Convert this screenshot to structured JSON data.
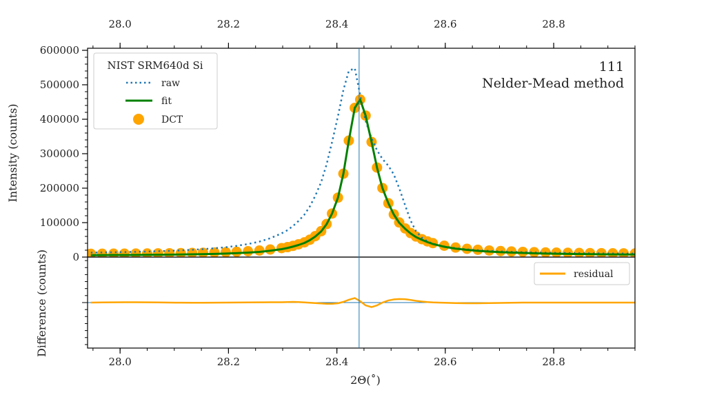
{
  "chart_data": {
    "type": "line",
    "title": "",
    "xlabel": "2Θ(˚)",
    "ylabel_top": "Intensity (counts)",
    "ylabel_bottom": "Difference (counts)",
    "xlim": [
      27.94,
      28.95
    ],
    "ylim_top": [
      0,
      606000
    ],
    "ylim_bottom": [
      -130000,
      130000
    ],
    "x_ticks": [
      "28.0",
      "28.2",
      "28.4",
      "28.6",
      "28.8"
    ],
    "x_tick_values": [
      28.0,
      28.2,
      28.4,
      28.6,
      28.8
    ],
    "y_ticks": [
      "0",
      "100000",
      "200000",
      "300000",
      "400000",
      "500000",
      "600000"
    ],
    "y_tick_values": [
      0,
      100000,
      200000,
      300000,
      400000,
      500000,
      600000
    ],
    "peak_line_x": 28.441,
    "annotations": [
      "111",
      "Nelder-Mead method"
    ],
    "legend_top": {
      "title": "NIST SRM640d Si",
      "entries": [
        "raw",
        "fit",
        "DCT"
      ],
      "placement": "upper-left"
    },
    "legend_bottom": {
      "entries": [
        "residual"
      ],
      "placement": "upper-right"
    },
    "colors": {
      "raw": "#1f77b4",
      "fit": "#008000",
      "dct": "#ffa500",
      "residual": "#ffa500",
      "peak_line": "#1f77b4"
    },
    "x": [
      27.946,
      27.967,
      27.988,
      28.008,
      28.029,
      28.05,
      28.07,
      28.091,
      28.112,
      28.133,
      28.153,
      28.174,
      28.195,
      28.215,
      28.236,
      28.257,
      28.277,
      28.298,
      28.309,
      28.319,
      28.329,
      28.34,
      28.35,
      28.36,
      28.371,
      28.381,
      28.391,
      28.402,
      28.412,
      28.422,
      28.433,
      28.443,
      28.453,
      28.464,
      28.474,
      28.484,
      28.495,
      28.505,
      28.515,
      28.526,
      28.536,
      28.546,
      28.557,
      28.567,
      28.577,
      28.598,
      28.619,
      28.64,
      28.66,
      28.681,
      28.702,
      28.722,
      28.743,
      28.764,
      28.785,
      28.805,
      28.826,
      28.847,
      28.867,
      28.888,
      28.909,
      28.929,
      28.95
    ],
    "series": [
      {
        "name": "raw",
        "values": [
          13000,
          13500,
          14000,
          14600,
          15300,
          16100,
          17000,
          18100,
          19500,
          21100,
          23000,
          25500,
          28600,
          32600,
          37800,
          44800,
          54600,
          68800,
          78200,
          90000,
          104500,
          123000,
          146700,
          177300,
          217600,
          268800,
          333200,
          408700,
          484800,
          540200,
          548000,
          470000,
          395000,
          345000,
          310000,
          285000,
          265000,
          240000,
          200000,
          150000,
          106000,
          75000,
          56000,
          46000,
          39000,
          31000,
          26000,
          22500,
          20000,
          18000,
          16500,
          15300,
          14300,
          13500,
          12800,
          12300,
          11800,
          11400,
          11100,
          10800,
          10600,
          10400,
          10200
        ]
      },
      {
        "name": "fit",
        "values": [
          5600,
          5700,
          5900,
          6000,
          6200,
          6500,
          6800,
          7100,
          7500,
          8000,
          8600,
          9300,
          10200,
          11400,
          13000,
          15000,
          18500,
          23000,
          26500,
          30500,
          35000,
          41000,
          49000,
          59500,
          74500,
          95500,
          126000,
          172500,
          242000,
          338000,
          433000,
          457000,
          410500,
          334000,
          259800,
          200300,
          156200,
          123500,
          99500,
          82000,
          68500,
          58000,
          50000,
          43500,
          38000,
          30000,
          24500,
          21000,
          18000,
          16000,
          14300,
          13000,
          12000,
          11000,
          10300,
          9700,
          9200,
          8800,
          8400,
          8100,
          7800,
          7600,
          7400
        ]
      },
      {
        "name": "DCT",
        "values": [
          9600,
          9700,
          9900,
          10000,
          10200,
          10500,
          10800,
          11100,
          11500,
          12000,
          12600,
          13300,
          14200,
          15400,
          17000,
          19000,
          22000,
          26100,
          28900,
          32500,
          37000,
          42800,
          50400,
          60800,
          75200,
          95900,
          126300,
          172600,
          242000,
          338000,
          433000,
          457000,
          410500,
          334000,
          259800,
          200300,
          156200,
          123900,
          100400,
          83000,
          69700,
          59700,
          51800,
          45500,
          40500,
          33000,
          27700,
          24000,
          21250,
          19100,
          17500,
          16200,
          15100,
          14200,
          13500,
          12900,
          12400,
          12000,
          11600,
          11300,
          11000,
          10800,
          10500
        ]
      },
      {
        "name": "residual",
        "values": [
          0,
          500,
          800,
          1000,
          1000,
          800,
          500,
          0,
          -300,
          -500,
          -500,
          -300,
          0,
          300,
          500,
          700,
          900,
          1000,
          1500,
          2000,
          1500,
          500,
          -500,
          -1500,
          -2500,
          -3500,
          -3500,
          -2000,
          2000,
          8000,
          13000,
          4000,
          -8000,
          -13000,
          -8000,
          0,
          6000,
          9000,
          10000,
          9500,
          7500,
          5000,
          3000,
          1500,
          500,
          -500,
          -1500,
          -2000,
          -2000,
          -1500,
          -1000,
          -500,
          0,
          0,
          0,
          0,
          0,
          0,
          0,
          0,
          0,
          0,
          0
        ]
      }
    ]
  }
}
